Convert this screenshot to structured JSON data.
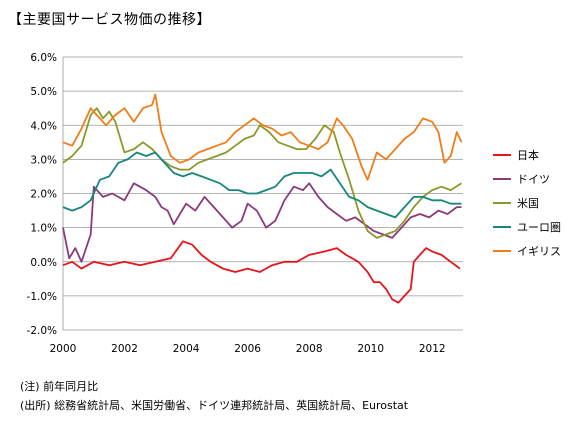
{
  "title": "【主要国サービス物価の推移】",
  "notes": [
    "(注) 前年同月比",
    "(出所) 総務省統計局、米国労働省、ドイツ連邦統計局、英国統計局、Eurostat"
  ],
  "chart_data": {
    "type": "line",
    "title": "【主要国サービス物価の推移】",
    "xlabel": "",
    "ylabel": "",
    "xlim": [
      2000,
      2013
    ],
    "ylim": [
      -2.0,
      6.0
    ],
    "x_ticks": [
      2000,
      2002,
      2004,
      2006,
      2008,
      2010,
      2012
    ],
    "x_tick_labels": [
      "2000",
      "2002",
      "2004",
      "2006",
      "2008",
      "2010",
      "2012"
    ],
    "y_ticks": [
      -2.0,
      -1.0,
      0.0,
      1.0,
      2.0,
      3.0,
      4.0,
      5.0,
      6.0
    ],
    "y_tick_labels": [
      "-2.0%",
      "-1.0%",
      "0.0%",
      "1.0%",
      "2.0%",
      "3.0%",
      "4.0%",
      "5.0%",
      "6.0%"
    ],
    "grid": true,
    "legend_position": "right",
    "series": [
      {
        "name": "日本",
        "color": "#e8141b",
        "points": [
          [
            2000.0,
            -0.1
          ],
          [
            2000.3,
            0.0
          ],
          [
            2000.6,
            -0.2
          ],
          [
            2001.0,
            0.0
          ],
          [
            2001.5,
            -0.1
          ],
          [
            2002.0,
            0.0
          ],
          [
            2002.5,
            -0.1
          ],
          [
            2003.0,
            0.0
          ],
          [
            2003.5,
            0.1
          ],
          [
            2003.9,
            0.6
          ],
          [
            2004.2,
            0.5
          ],
          [
            2004.5,
            0.2
          ],
          [
            2004.8,
            0.0
          ],
          [
            2005.2,
            -0.2
          ],
          [
            2005.6,
            -0.3
          ],
          [
            2006.0,
            -0.2
          ],
          [
            2006.4,
            -0.3
          ],
          [
            2006.8,
            -0.1
          ],
          [
            2007.2,
            0.0
          ],
          [
            2007.6,
            0.0
          ],
          [
            2008.0,
            0.2
          ],
          [
            2008.5,
            0.3
          ],
          [
            2008.9,
            0.4
          ],
          [
            2009.2,
            0.2
          ],
          [
            2009.6,
            0.0
          ],
          [
            2009.9,
            -0.3
          ],
          [
            2010.1,
            -0.6
          ],
          [
            2010.3,
            -0.6
          ],
          [
            2010.5,
            -0.8
          ],
          [
            2010.7,
            -1.1
          ],
          [
            2010.9,
            -1.2
          ],
          [
            2011.1,
            -1.0
          ],
          [
            2011.3,
            -0.8
          ],
          [
            2011.4,
            0.0
          ],
          [
            2011.6,
            0.2
          ],
          [
            2011.8,
            0.4
          ],
          [
            2012.0,
            0.3
          ],
          [
            2012.3,
            0.2
          ],
          [
            2012.6,
            0.0
          ],
          [
            2012.9,
            -0.2
          ]
        ]
      },
      {
        "name": "ドイツ",
        "color": "#8b3a7d",
        "points": [
          [
            2000.0,
            1.0
          ],
          [
            2000.2,
            0.1
          ],
          [
            2000.4,
            0.4
          ],
          [
            2000.6,
            0.0
          ],
          [
            2000.9,
            0.8
          ],
          [
            2001.0,
            2.2
          ],
          [
            2001.3,
            1.9
          ],
          [
            2001.6,
            2.0
          ],
          [
            2002.0,
            1.8
          ],
          [
            2002.3,
            2.3
          ],
          [
            2002.7,
            2.1
          ],
          [
            2003.0,
            1.9
          ],
          [
            2003.2,
            1.6
          ],
          [
            2003.4,
            1.5
          ],
          [
            2003.6,
            1.1
          ],
          [
            2003.8,
            1.4
          ],
          [
            2004.0,
            1.7
          ],
          [
            2004.3,
            1.5
          ],
          [
            2004.6,
            1.9
          ],
          [
            2004.9,
            1.6
          ],
          [
            2005.2,
            1.3
          ],
          [
            2005.5,
            1.0
          ],
          [
            2005.8,
            1.2
          ],
          [
            2006.0,
            1.7
          ],
          [
            2006.3,
            1.5
          ],
          [
            2006.6,
            1.0
          ],
          [
            2006.9,
            1.2
          ],
          [
            2007.2,
            1.8
          ],
          [
            2007.5,
            2.2
          ],
          [
            2007.8,
            2.1
          ],
          [
            2008.0,
            2.3
          ],
          [
            2008.3,
            1.9
          ],
          [
            2008.6,
            1.6
          ],
          [
            2008.9,
            1.4
          ],
          [
            2009.2,
            1.2
          ],
          [
            2009.5,
            1.3
          ],
          [
            2009.8,
            1.1
          ],
          [
            2010.1,
            0.9
          ],
          [
            2010.4,
            0.8
          ],
          [
            2010.7,
            0.7
          ],
          [
            2011.0,
            1.0
          ],
          [
            2011.3,
            1.3
          ],
          [
            2011.6,
            1.4
          ],
          [
            2011.9,
            1.3
          ],
          [
            2012.2,
            1.5
          ],
          [
            2012.5,
            1.4
          ],
          [
            2012.8,
            1.6
          ],
          [
            2012.95,
            1.6
          ]
        ]
      },
      {
        "name": "米国",
        "color": "#8a9a2a",
        "points": [
          [
            2000.0,
            2.9
          ],
          [
            2000.3,
            3.1
          ],
          [
            2000.6,
            3.4
          ],
          [
            2000.9,
            4.3
          ],
          [
            2001.1,
            4.5
          ],
          [
            2001.3,
            4.2
          ],
          [
            2001.5,
            4.4
          ],
          [
            2001.7,
            4.1
          ],
          [
            2002.0,
            3.2
          ],
          [
            2002.3,
            3.3
          ],
          [
            2002.6,
            3.5
          ],
          [
            2002.9,
            3.3
          ],
          [
            2003.2,
            3.0
          ],
          [
            2003.5,
            2.8
          ],
          [
            2003.8,
            2.7
          ],
          [
            2004.1,
            2.7
          ],
          [
            2004.4,
            2.9
          ],
          [
            2004.7,
            3.0
          ],
          [
            2005.0,
            3.1
          ],
          [
            2005.3,
            3.2
          ],
          [
            2005.6,
            3.4
          ],
          [
            2005.9,
            3.6
          ],
          [
            2006.2,
            3.7
          ],
          [
            2006.4,
            4.0
          ],
          [
            2006.7,
            3.8
          ],
          [
            2007.0,
            3.5
          ],
          [
            2007.3,
            3.4
          ],
          [
            2007.6,
            3.3
          ],
          [
            2007.9,
            3.3
          ],
          [
            2008.2,
            3.6
          ],
          [
            2008.5,
            4.0
          ],
          [
            2008.8,
            3.8
          ],
          [
            2009.0,
            3.2
          ],
          [
            2009.3,
            2.4
          ],
          [
            2009.6,
            1.5
          ],
          [
            2009.9,
            0.9
          ],
          [
            2010.2,
            0.7
          ],
          [
            2010.5,
            0.8
          ],
          [
            2010.8,
            0.9
          ],
          [
            2011.1,
            1.2
          ],
          [
            2011.4,
            1.6
          ],
          [
            2011.7,
            1.9
          ],
          [
            2012.0,
            2.1
          ],
          [
            2012.3,
            2.2
          ],
          [
            2012.6,
            2.1
          ],
          [
            2012.95,
            2.3
          ]
        ]
      },
      {
        "name": "ユーロ圏",
        "color": "#17867e",
        "points": [
          [
            2000.0,
            1.6
          ],
          [
            2000.3,
            1.5
          ],
          [
            2000.6,
            1.6
          ],
          [
            2000.9,
            1.8
          ],
          [
            2001.2,
            2.4
          ],
          [
            2001.5,
            2.5
          ],
          [
            2001.8,
            2.9
          ],
          [
            2002.1,
            3.0
          ],
          [
            2002.4,
            3.2
          ],
          [
            2002.7,
            3.1
          ],
          [
            2003.0,
            3.2
          ],
          [
            2003.3,
            2.9
          ],
          [
            2003.6,
            2.6
          ],
          [
            2003.9,
            2.5
          ],
          [
            2004.2,
            2.6
          ],
          [
            2004.5,
            2.5
          ],
          [
            2004.8,
            2.4
          ],
          [
            2005.1,
            2.3
          ],
          [
            2005.4,
            2.1
          ],
          [
            2005.7,
            2.1
          ],
          [
            2006.0,
            2.0
          ],
          [
            2006.3,
            2.0
          ],
          [
            2006.6,
            2.1
          ],
          [
            2006.9,
            2.2
          ],
          [
            2007.2,
            2.5
          ],
          [
            2007.5,
            2.6
          ],
          [
            2007.8,
            2.6
          ],
          [
            2008.1,
            2.6
          ],
          [
            2008.4,
            2.5
          ],
          [
            2008.7,
            2.7
          ],
          [
            2009.0,
            2.3
          ],
          [
            2009.3,
            1.9
          ],
          [
            2009.6,
            1.8
          ],
          [
            2009.9,
            1.6
          ],
          [
            2010.2,
            1.5
          ],
          [
            2010.5,
            1.4
          ],
          [
            2010.8,
            1.3
          ],
          [
            2011.1,
            1.6
          ],
          [
            2011.4,
            1.9
          ],
          [
            2011.7,
            1.9
          ],
          [
            2012.0,
            1.8
          ],
          [
            2012.3,
            1.8
          ],
          [
            2012.6,
            1.7
          ],
          [
            2012.95,
            1.7
          ]
        ]
      },
      {
        "name": "イギリス",
        "color": "#f07d1a",
        "points": [
          [
            2000.0,
            3.5
          ],
          [
            2000.3,
            3.4
          ],
          [
            2000.6,
            3.9
          ],
          [
            2000.9,
            4.5
          ],
          [
            2001.1,
            4.3
          ],
          [
            2001.4,
            4.0
          ],
          [
            2001.7,
            4.3
          ],
          [
            2002.0,
            4.5
          ],
          [
            2002.3,
            4.1
          ],
          [
            2002.6,
            4.5
          ],
          [
            2002.9,
            4.6
          ],
          [
            2003.0,
            4.9
          ],
          [
            2003.2,
            3.8
          ],
          [
            2003.5,
            3.1
          ],
          [
            2003.8,
            2.9
          ],
          [
            2004.1,
            3.0
          ],
          [
            2004.4,
            3.2
          ],
          [
            2004.7,
            3.3
          ],
          [
            2005.0,
            3.4
          ],
          [
            2005.3,
            3.5
          ],
          [
            2005.6,
            3.8
          ],
          [
            2005.9,
            4.0
          ],
          [
            2006.2,
            4.2
          ],
          [
            2006.5,
            4.0
          ],
          [
            2006.8,
            3.9
          ],
          [
            2007.1,
            3.7
          ],
          [
            2007.4,
            3.8
          ],
          [
            2007.7,
            3.5
          ],
          [
            2008.0,
            3.4
          ],
          [
            2008.3,
            3.3
          ],
          [
            2008.6,
            3.5
          ],
          [
            2008.9,
            4.2
          ],
          [
            2009.1,
            4.0
          ],
          [
            2009.4,
            3.6
          ],
          [
            2009.7,
            2.8
          ],
          [
            2009.9,
            2.4
          ],
          [
            2010.2,
            3.2
          ],
          [
            2010.5,
            3.0
          ],
          [
            2010.8,
            3.3
          ],
          [
            2011.1,
            3.6
          ],
          [
            2011.4,
            3.8
          ],
          [
            2011.7,
            4.2
          ],
          [
            2012.0,
            4.1
          ],
          [
            2012.2,
            3.8
          ],
          [
            2012.4,
            2.9
          ],
          [
            2012.6,
            3.1
          ],
          [
            2012.8,
            3.8
          ],
          [
            2012.95,
            3.5
          ]
        ]
      }
    ]
  }
}
